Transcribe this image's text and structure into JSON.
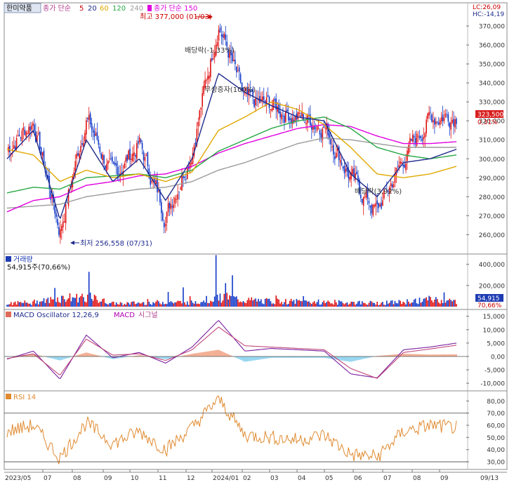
{
  "header": {
    "stock_name": "한미약품",
    "ma_label_a": "종가 단순",
    "ma_periods": [
      "5",
      "20",
      "60",
      "120",
      "240"
    ],
    "ma_colors": [
      "#cc0000",
      "#1e2a8c",
      "#e0a800",
      "#27a844",
      "#9b9b9b"
    ],
    "ma_label_b": "종가 단순 150",
    "ma_b_color": "#e000e0",
    "lc": "LC:26,09",
    "hc": "HC:-14,19"
  },
  "annotations": {
    "high": "최고 377,000 (01/03)",
    "low": "최저 256,558 (07/31)",
    "dividend": "배당락(-1,33%)",
    "capital_increase": "무상증자(100%)",
    "rights": "배당락(3,92%)"
  },
  "price_panel": {
    "last_price": "323,500",
    "last_change": "0,31%",
    "ticks": [
      "370,000",
      "360,000",
      "350,000",
      "340,000",
      "330,000",
      "320,000",
      "310,000",
      "300,000",
      "290,000",
      "280,000",
      "270,000",
      "260,000"
    ],
    "tick_values": [
      370000,
      360000,
      350000,
      340000,
      330000,
      320000,
      310000,
      300000,
      290000,
      280000,
      270000,
      260000
    ],
    "ylim": [
      252000,
      380000
    ]
  },
  "volume_panel": {
    "title": "거래량",
    "last": "54,915주(70,66%)",
    "badge_value": "54,915",
    "badge_pct": "70,66%",
    "ticks": [
      "400,000",
      "200,000"
    ],
    "tick_values": [
      400000,
      200000
    ],
    "ylim": [
      0,
      470000
    ]
  },
  "macd_panel": {
    "title": "MACD Oscillator 12,26,9",
    "macd_label": "MACD",
    "signal_label": "시그널",
    "ticks": [
      "15,000",
      "10,000",
      "5,000",
      "0,00",
      "-5,000",
      "-10,000"
    ],
    "tick_values": [
      15000,
      10000,
      5000,
      0,
      -5000,
      -10000
    ],
    "ylim": [
      -11800,
      16500
    ]
  },
  "rsi_panel": {
    "title": "RSI 14",
    "ticks": [
      "80,00",
      "70,00",
      "60,00",
      "50,00",
      "40,00",
      "30,00"
    ],
    "tick_values": [
      80,
      70,
      60,
      50,
      40,
      30
    ],
    "ylim": [
      26,
      86
    ]
  },
  "x_axis": {
    "labels": [
      "2023/05",
      "07",
      "08",
      "09",
      "10",
      "11",
      "12",
      "2024/01",
      "02",
      "03",
      "04",
      "05",
      "06",
      "07",
      "08",
      "09",
      "09/13"
    ]
  },
  "chart_data": {
    "type": "line",
    "title": "",
    "xlabel": "",
    "ylabel": "",
    "x": [
      "2023/05",
      "2023/06",
      "2023/07",
      "2023/08",
      "2023/09",
      "2023/10",
      "2023/11",
      "2023/12",
      "2024/01",
      "2024/02",
      "2024/03",
      "2024/04",
      "2024/05",
      "2024/06",
      "2024/07",
      "2024/08",
      "2024/09",
      "2024/09/13"
    ],
    "series": [
      {
        "name": "종가",
        "values": [
          305000,
          320000,
          262000,
          322000,
          290000,
          308000,
          270000,
          305000,
          372000,
          330000,
          328000,
          322000,
          318000,
          290000,
          272000,
          300000,
          322000,
          323500
        ]
      },
      {
        "name": "20",
        "values": [
          300000,
          315000,
          268000,
          310000,
          288000,
          300000,
          278000,
          300000,
          345000,
          335000,
          328000,
          322000,
          320000,
          292000,
          280000,
          298000,
          300000,
          305000
        ]
      },
      {
        "name": "60",
        "values": [
          305000,
          302000,
          288000,
          294000,
          290000,
          292000,
          288000,
          293000,
          315000,
          322000,
          330000,
          326000,
          318000,
          306000,
          292000,
          290000,
          292000,
          296000
        ]
      },
      {
        "name": "120",
        "values": [
          282000,
          285000,
          284000,
          290000,
          291000,
          292000,
          290000,
          294000,
          304000,
          310000,
          316000,
          320000,
          322000,
          316000,
          306000,
          302000,
          300000,
          302000
        ]
      },
      {
        "name": "150",
        "values": [
          272000,
          278000,
          280000,
          286000,
          288000,
          291000,
          292000,
          296000,
          303000,
          308000,
          312000,
          316000,
          318000,
          317000,
          312000,
          308000,
          308000,
          309000
        ]
      },
      {
        "name": "240",
        "values": [
          274000,
          275000,
          276000,
          280000,
          282000,
          284000,
          285000,
          288000,
          294000,
          298000,
          303000,
          308000,
          311000,
          310000,
          308000,
          306000,
          306000,
          306000
        ]
      },
      {
        "name": "거래량",
        "values": [
          40000,
          45000,
          90000,
          110000,
          35000,
          40000,
          50000,
          45000,
          110000,
          70000,
          60000,
          55000,
          50000,
          45000,
          40000,
          50000,
          80000,
          54915
        ]
      },
      {
        "name": "MACD",
        "values": [
          -1000,
          2000,
          -8500,
          8000,
          -500,
          1500,
          -2500,
          3500,
          13500,
          2000,
          3000,
          2500,
          2000,
          -6500,
          -8000,
          2500,
          3500,
          5000
        ]
      },
      {
        "name": "시그널",
        "values": [
          -800,
          1000,
          -7000,
          6500,
          500,
          1000,
          -1500,
          2500,
          11000,
          4000,
          3500,
          3000,
          2500,
          -4500,
          -8200,
          1500,
          2800,
          4200
        ]
      },
      {
        "name": "RSI 14",
        "values": [
          55,
          60,
          33,
          62,
          45,
          55,
          40,
          58,
          82,
          52,
          50,
          48,
          52,
          36,
          34,
          55,
          60,
          58
        ]
      }
    ],
    "ylim": [
      252000,
      380000
    ],
    "grid": false,
    "legend": "top-left"
  }
}
